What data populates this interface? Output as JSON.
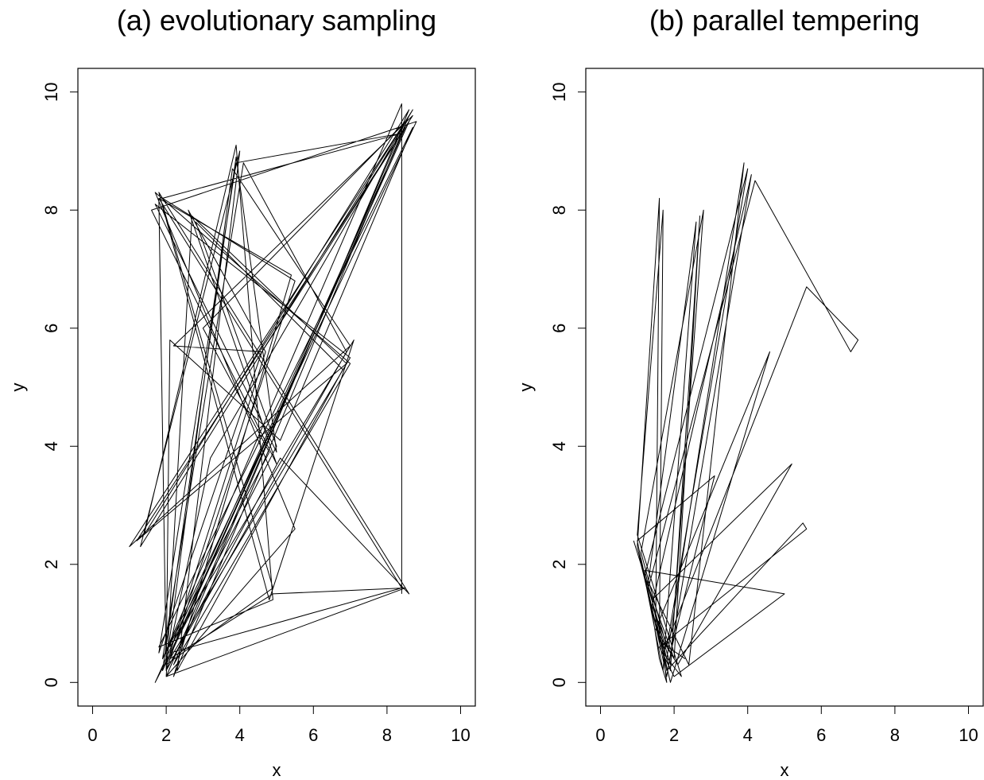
{
  "chart_data": [
    {
      "type": "line",
      "title": "(a) evolutionary sampling",
      "x_label": "x",
      "y_label": "y",
      "xlim": [
        -0.4,
        10.4
      ],
      "ylim": [
        -0.4,
        10.4
      ],
      "xticks": [
        0,
        2,
        4,
        6,
        8,
        10
      ],
      "yticks": [
        0,
        2,
        4,
        6,
        8,
        10
      ],
      "color": "#000000",
      "x": [
        1.8,
        2.0,
        8.6,
        1.9,
        3.9,
        5.0,
        1.7,
        7.0,
        2.1,
        4.9,
        8.5,
        2.0,
        2.7,
        6.9,
        1.2,
        8.7,
        2.2,
        4.6,
        1.8,
        3.9,
        8.4,
        1.9,
        5.5,
        2.0,
        5.1,
        8.6,
        1.8,
        4.8,
        7.1,
        2.1,
        3.2,
        8.7,
        1.3,
        4.0,
        2.3,
        6.8,
        2.8,
        5.0,
        1.7,
        8.5,
        4.5,
        1.9,
        4.9,
        2.0,
        3.8,
        7.0,
        1.0,
        8.6,
        2.2,
        5.4,
        1.8,
        8.4,
        2.1,
        4.7,
        2.6,
        5.0,
        1.6,
        8.8,
        1.9,
        4.1,
        6.9,
        2.0,
        2.1,
        5.1,
        8.7,
        1.8,
        4.9,
        3.9,
        1.4,
        8.6,
        2.2,
        7.0,
        1.7,
        5.5,
        2.0,
        8.5,
        3.0,
        4.8,
        1.9,
        8.4,
        8.4
      ],
      "values": [
        8.2,
        0.3,
        9.5,
        0.2,
        8.9,
        3.9,
        8.1,
        5.5,
        0.4,
        1.5,
        1.6,
        0.1,
        7.9,
        5.4,
        2.4,
        9.6,
        5.7,
        5.6,
        0.5,
        8.8,
        9.3,
        8.2,
        6.8,
        0.2,
        3.8,
        1.5,
        8.3,
        1.4,
        5.8,
        0.6,
        3.8,
        9.7,
        2.3,
        9.0,
        0.2,
        5.3,
        7.8,
        4.0,
        0.0,
        9.4,
        5.5,
        8.1,
        1.6,
        0.3,
        8.7,
        5.7,
        2.3,
        9.6,
        0.1,
        6.9,
        8.2,
        1.6,
        0.5,
        5.6,
        8.0,
        3.7,
        8.0,
        9.5,
        0.4,
        8.8,
        5.6,
        0.2,
        5.8,
        4.1,
        9.4,
        0.6,
        1.4,
        9.1,
        2.5,
        9.7,
        0.3,
        5.4,
        8.3,
        2.6,
        0.1,
        9.5,
        6.0,
        3.9,
        0.4,
        9.8,
        1.5
      ]
    },
    {
      "type": "line",
      "title": "(b) parallel tempering",
      "x_label": "x",
      "y_label": "y",
      "xlim": [
        -0.4,
        10.4
      ],
      "ylim": [
        -0.4,
        10.4
      ],
      "xticks": [
        0,
        2,
        4,
        6,
        8,
        10
      ],
      "yticks": [
        0,
        2,
        4,
        6,
        8,
        10
      ],
      "color": "#000000",
      "x": [
        0.9,
        1.1,
        1.3,
        1.5,
        1.7,
        1.8,
        1.6,
        1.4,
        1.0,
        1.6,
        1.5,
        1.9,
        2.7,
        2.0,
        1.2,
        4.0,
        1.8,
        1.1,
        2.8,
        1.9,
        1.3,
        4.2,
        6.8,
        7.0,
        5.6,
        1.7,
        2.2,
        1.0,
        1.7,
        1.6,
        1.9,
        4.6,
        1.5,
        2.1,
        5.2,
        1.4,
        1.8,
        5.5,
        5.6,
        1.6,
        2.0,
        5.0,
        1.2,
        1.8,
        3.9,
        2.4,
        1.3,
        2.6,
        1.7,
        1.0,
        3.1,
        1.9,
        1.4,
        4.1,
        1.8,
        1.1,
        1.6,
        2.3
      ],
      "values": [
        2.4,
        2.0,
        1.5,
        1.0,
        0.5,
        0.0,
        0.4,
        1.2,
        2.3,
        8.2,
        1.0,
        0.2,
        7.9,
        0.4,
        1.8,
        8.7,
        0.6,
        2.2,
        8.0,
        0.3,
        1.6,
        8.5,
        5.6,
        5.8,
        6.7,
        0.5,
        0.1,
        2.5,
        8.0,
        0.8,
        0.0,
        5.6,
        0.9,
        0.3,
        3.7,
        1.4,
        0.2,
        2.7,
        2.6,
        0.6,
        0.1,
        1.5,
        1.9,
        0.4,
        8.8,
        0.3,
        1.7,
        7.8,
        0.2,
        2.4,
        3.5,
        0.5,
        1.3,
        8.6,
        0.1,
        2.1,
        0.7,
        0.4
      ]
    }
  ]
}
